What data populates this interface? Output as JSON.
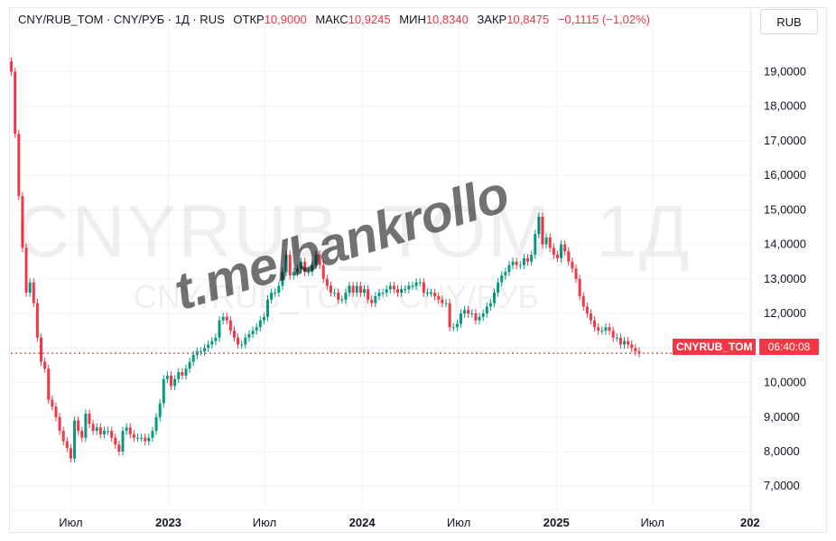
{
  "legend": {
    "symbol": "CNY/RUB_TOM · CNY/РУБ · 1Д · RUS",
    "open_label": "ОТКР",
    "open": "10,9000",
    "high_label": "МАКС",
    "high": "10,9245",
    "low_label": "МИН",
    "low": "10,8340",
    "close_label": "ЗАКР",
    "close": "10,8475",
    "change": "−0,1115 (−1,02%)"
  },
  "currency_button": "RUB",
  "watermark": {
    "main": "CNYRUB_TOM, 1Д",
    "sub": "CNY/RUB_TOM · CNY/РУБ",
    "handle": "t.me/bankrollo"
  },
  "price_label": {
    "symbol": "CNYRUB_TOM",
    "time": "06:40:08"
  },
  "colors": {
    "up": "#089981",
    "down": "#f23645",
    "last_price_line": "#f23645",
    "axis_text": "#131722"
  },
  "chart_data": {
    "type": "candlestick",
    "title": "CNY/RUB_TOM · CNY/РУБ · 1Д · RUS",
    "y_ticks": [
      "19,0000",
      "18,0000",
      "17,0000",
      "16,0000",
      "15,0000",
      "14,0000",
      "13,0000",
      "12,0000",
      "11,0000",
      "10,0000",
      "9,0000",
      "8,0000",
      "7,0000"
    ],
    "y_tick_values": [
      19,
      18,
      17,
      16,
      15,
      14,
      13,
      12,
      11,
      10,
      9,
      8,
      7
    ],
    "x_ticks": [
      "Июл",
      "2023",
      "Июл",
      "2024",
      "Июл",
      "2025",
      "Июл",
      "202"
    ],
    "x_tick_dates": [
      "2022-07-01",
      "2023-01-01",
      "2023-07-01",
      "2024-01-01",
      "2024-07-01",
      "2025-01-01",
      "2025-07-01",
      "2026-01-01"
    ],
    "ylim": [
      6.3,
      19.9
    ],
    "xlim": [
      "2022-03-10",
      "2026-01-03"
    ],
    "last_price": 10.8475,
    "series": [
      {
        "values": [
          [
            "2022-03-11",
            19.0
          ],
          [
            "2022-03-18",
            17.2
          ],
          [
            "2022-03-25",
            15.4
          ],
          [
            "2022-04-01",
            13.9
          ],
          [
            "2022-04-08",
            12.6
          ],
          [
            "2022-04-15",
            12.9
          ],
          [
            "2022-04-22",
            12.3
          ],
          [
            "2022-04-29",
            11.3
          ],
          [
            "2022-05-06",
            10.6
          ],
          [
            "2022-05-13",
            10.4
          ],
          [
            "2022-05-20",
            9.5
          ],
          [
            "2022-05-27",
            9.3
          ],
          [
            "2022-06-03",
            9.0
          ],
          [
            "2022-06-10",
            8.6
          ],
          [
            "2022-06-17",
            8.3
          ],
          [
            "2022-06-24",
            8.1
          ],
          [
            "2022-07-01",
            7.8
          ],
          [
            "2022-07-08",
            8.9
          ],
          [
            "2022-07-15",
            8.6
          ],
          [
            "2022-07-22",
            8.4
          ],
          [
            "2022-07-29",
            9.1
          ],
          [
            "2022-08-05",
            8.8
          ],
          [
            "2022-08-12",
            8.6
          ],
          [
            "2022-08-19",
            8.7
          ],
          [
            "2022-08-26",
            8.5
          ],
          [
            "2022-09-02",
            8.6
          ],
          [
            "2022-09-09",
            8.6
          ],
          [
            "2022-09-16",
            8.4
          ],
          [
            "2022-09-23",
            8.2
          ],
          [
            "2022-09-30",
            8.0
          ],
          [
            "2022-10-07",
            8.6
          ],
          [
            "2022-10-14",
            8.7
          ],
          [
            "2022-10-21",
            8.5
          ],
          [
            "2022-10-28",
            8.4
          ],
          [
            "2022-11-04",
            8.4
          ],
          [
            "2022-11-11",
            8.4
          ],
          [
            "2022-11-18",
            8.3
          ],
          [
            "2022-11-25",
            8.4
          ],
          [
            "2022-12-02",
            8.6
          ],
          [
            "2022-12-09",
            9.0
          ],
          [
            "2022-12-16",
            9.4
          ],
          [
            "2022-12-23",
            10.1
          ],
          [
            "2022-12-30",
            10.2
          ],
          [
            "2023-01-06",
            9.9
          ],
          [
            "2023-01-13",
            10.1
          ],
          [
            "2023-01-20",
            10.3
          ],
          [
            "2023-01-27",
            10.2
          ],
          [
            "2023-02-03",
            10.4
          ],
          [
            "2023-02-10",
            10.6
          ],
          [
            "2023-02-17",
            10.8
          ],
          [
            "2023-02-24",
            10.9
          ],
          [
            "2023-03-03",
            10.9
          ],
          [
            "2023-03-10",
            11.0
          ],
          [
            "2023-03-17",
            11.1
          ],
          [
            "2023-03-24",
            11.2
          ],
          [
            "2023-03-31",
            11.3
          ],
          [
            "2023-04-07",
            11.8
          ],
          [
            "2023-04-14",
            11.9
          ],
          [
            "2023-04-21",
            11.8
          ],
          [
            "2023-04-28",
            11.5
          ],
          [
            "2023-05-05",
            11.3
          ],
          [
            "2023-05-12",
            11.1
          ],
          [
            "2023-05-19",
            11.1
          ],
          [
            "2023-05-26",
            11.3
          ],
          [
            "2023-06-02",
            11.4
          ],
          [
            "2023-06-09",
            11.5
          ],
          [
            "2023-06-16",
            11.6
          ],
          [
            "2023-06-23",
            11.8
          ],
          [
            "2023-06-30",
            11.9
          ],
          [
            "2023-07-07",
            12.4
          ],
          [
            "2023-07-14",
            12.6
          ],
          [
            "2023-07-21",
            12.6
          ],
          [
            "2023-07-28",
            12.8
          ],
          [
            "2023-08-04",
            13.2
          ],
          [
            "2023-08-11",
            13.7
          ],
          [
            "2023-08-18",
            13.1
          ],
          [
            "2023-08-25",
            13.2
          ],
          [
            "2023-09-01",
            13.3
          ],
          [
            "2023-09-08",
            13.5
          ],
          [
            "2023-09-15",
            13.2
          ],
          [
            "2023-09-22",
            13.2
          ],
          [
            "2023-09-29",
            13.4
          ],
          [
            "2023-10-06",
            13.7
          ],
          [
            "2023-10-13",
            13.4
          ],
          [
            "2023-10-20",
            13.0
          ],
          [
            "2023-10-27",
            12.8
          ],
          [
            "2023-11-03",
            12.6
          ],
          [
            "2023-11-10",
            12.6
          ],
          [
            "2023-11-17",
            12.4
          ],
          [
            "2023-11-24",
            12.4
          ],
          [
            "2023-12-01",
            12.6
          ],
          [
            "2023-12-08",
            12.8
          ],
          [
            "2023-12-15",
            12.6
          ],
          [
            "2023-12-22",
            12.8
          ],
          [
            "2023-12-29",
            12.6
          ],
          [
            "2024-01-05",
            12.7
          ],
          [
            "2024-01-12",
            12.4
          ],
          [
            "2024-01-19",
            12.3
          ],
          [
            "2024-01-26",
            12.5
          ],
          [
            "2024-02-02",
            12.6
          ],
          [
            "2024-02-09",
            12.6
          ],
          [
            "2024-02-16",
            12.7
          ],
          [
            "2024-02-23",
            12.8
          ],
          [
            "2024-03-01",
            12.7
          ],
          [
            "2024-03-08",
            12.6
          ],
          [
            "2024-03-15",
            12.7
          ],
          [
            "2024-03-22",
            12.7
          ],
          [
            "2024-03-29",
            12.8
          ],
          [
            "2024-04-05",
            12.8
          ],
          [
            "2024-04-12",
            12.9
          ],
          [
            "2024-04-19",
            12.9
          ],
          [
            "2024-04-26",
            12.6
          ],
          [
            "2024-05-03",
            12.6
          ],
          [
            "2024-05-10",
            12.6
          ],
          [
            "2024-05-17",
            12.5
          ],
          [
            "2024-05-24",
            12.4
          ],
          [
            "2024-05-31",
            12.3
          ],
          [
            "2024-06-07",
            12.3
          ],
          [
            "2024-06-14",
            11.6
          ],
          [
            "2024-06-21",
            11.6
          ],
          [
            "2024-06-28",
            11.7
          ],
          [
            "2024-07-05",
            12.0
          ],
          [
            "2024-07-12",
            12.1
          ],
          [
            "2024-07-19",
            12.0
          ],
          [
            "2024-07-26",
            12.0
          ],
          [
            "2024-08-02",
            11.8
          ],
          [
            "2024-08-09",
            11.9
          ],
          [
            "2024-08-16",
            12.0
          ],
          [
            "2024-08-23",
            12.2
          ],
          [
            "2024-08-30",
            12.3
          ],
          [
            "2024-09-06",
            12.6
          ],
          [
            "2024-09-13",
            12.9
          ],
          [
            "2024-09-20",
            13.1
          ],
          [
            "2024-09-27",
            13.2
          ],
          [
            "2024-10-04",
            13.4
          ],
          [
            "2024-10-11",
            13.5
          ],
          [
            "2024-10-18",
            13.4
          ],
          [
            "2024-10-25",
            13.4
          ],
          [
            "2024-11-01",
            13.6
          ],
          [
            "2024-11-08",
            13.5
          ],
          [
            "2024-11-15",
            13.7
          ],
          [
            "2024-11-22",
            14.3
          ],
          [
            "2024-11-29",
            14.8
          ],
          [
            "2024-12-06",
            14.0
          ],
          [
            "2024-12-13",
            14.2
          ],
          [
            "2024-12-20",
            13.9
          ],
          [
            "2024-12-27",
            13.7
          ],
          [
            "2025-01-03",
            13.6
          ],
          [
            "2025-01-10",
            14.0
          ],
          [
            "2025-01-17",
            13.8
          ],
          [
            "2025-01-24",
            13.5
          ],
          [
            "2025-01-31",
            13.3
          ],
          [
            "2025-02-07",
            13.0
          ],
          [
            "2025-02-14",
            12.5
          ],
          [
            "2025-02-21",
            12.2
          ],
          [
            "2025-02-28",
            12.0
          ],
          [
            "2025-03-07",
            11.8
          ],
          [
            "2025-03-14",
            11.6
          ],
          [
            "2025-03-21",
            11.5
          ],
          [
            "2025-03-28",
            11.5
          ],
          [
            "2025-04-04",
            11.6
          ],
          [
            "2025-04-11",
            11.5
          ],
          [
            "2025-04-18",
            11.3
          ],
          [
            "2025-04-25",
            11.3
          ],
          [
            "2025-05-02",
            11.1
          ],
          [
            "2025-05-09",
            11.2
          ],
          [
            "2025-05-16",
            11.1
          ],
          [
            "2025-05-23",
            11.0
          ],
          [
            "2025-05-30",
            10.9
          ],
          [
            "2025-06-06",
            10.85
          ]
        ]
      }
    ]
  }
}
